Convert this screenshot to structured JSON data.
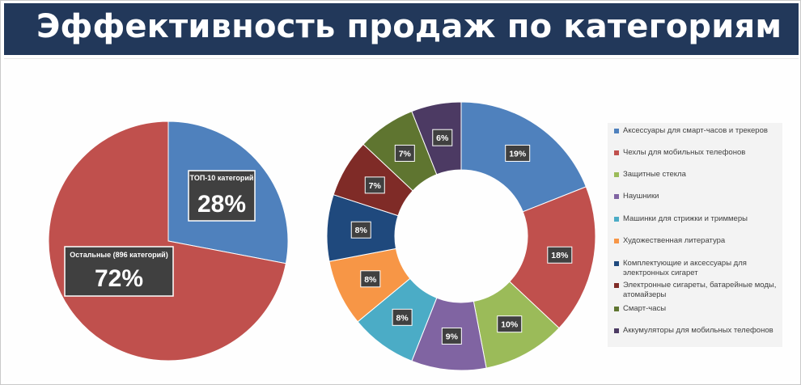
{
  "header": {
    "title": "Эффективность продаж по категориям"
  },
  "chart_data": [
    {
      "type": "pie",
      "categories": [
        "ТОП-10 категорий",
        "Остальные (896 категорий)"
      ],
      "values": [
        28,
        72
      ],
      "value_labels": [
        "28%",
        "72%"
      ],
      "colors": [
        "#4f81bd",
        "#c0504d"
      ]
    },
    {
      "type": "pie",
      "subtype": "donut",
      "categories": [
        "Аксессуары для смарт-часов и трекеров",
        "Чехлы для мобильных телефонов",
        "Защитные стекла",
        "Наушники",
        "Машинки для стрижки и триммеры",
        "Художественная литература",
        "Комплектующие и аксессуары для электронных сигарет",
        "Электронные сигареты, батарейные моды, атомайзеры",
        "Смарт-часы",
        "Аккумуляторы для мобильных телефонов"
      ],
      "values": [
        19,
        18,
        10,
        9,
        8,
        8,
        8,
        7,
        7,
        6
      ],
      "value_labels": [
        "19%",
        "18%",
        "10%",
        "9%",
        "8%",
        "8%",
        "8%",
        "7%",
        "7%",
        "6%"
      ],
      "colors": [
        "#4f81bd",
        "#c0504d",
        "#9bbb59",
        "#8064a2",
        "#4bacc6",
        "#f79646",
        "#1f497d",
        "#7f2b27",
        "#5f7530",
        "#4c3a63"
      ],
      "legend_position": "right"
    }
  ]
}
